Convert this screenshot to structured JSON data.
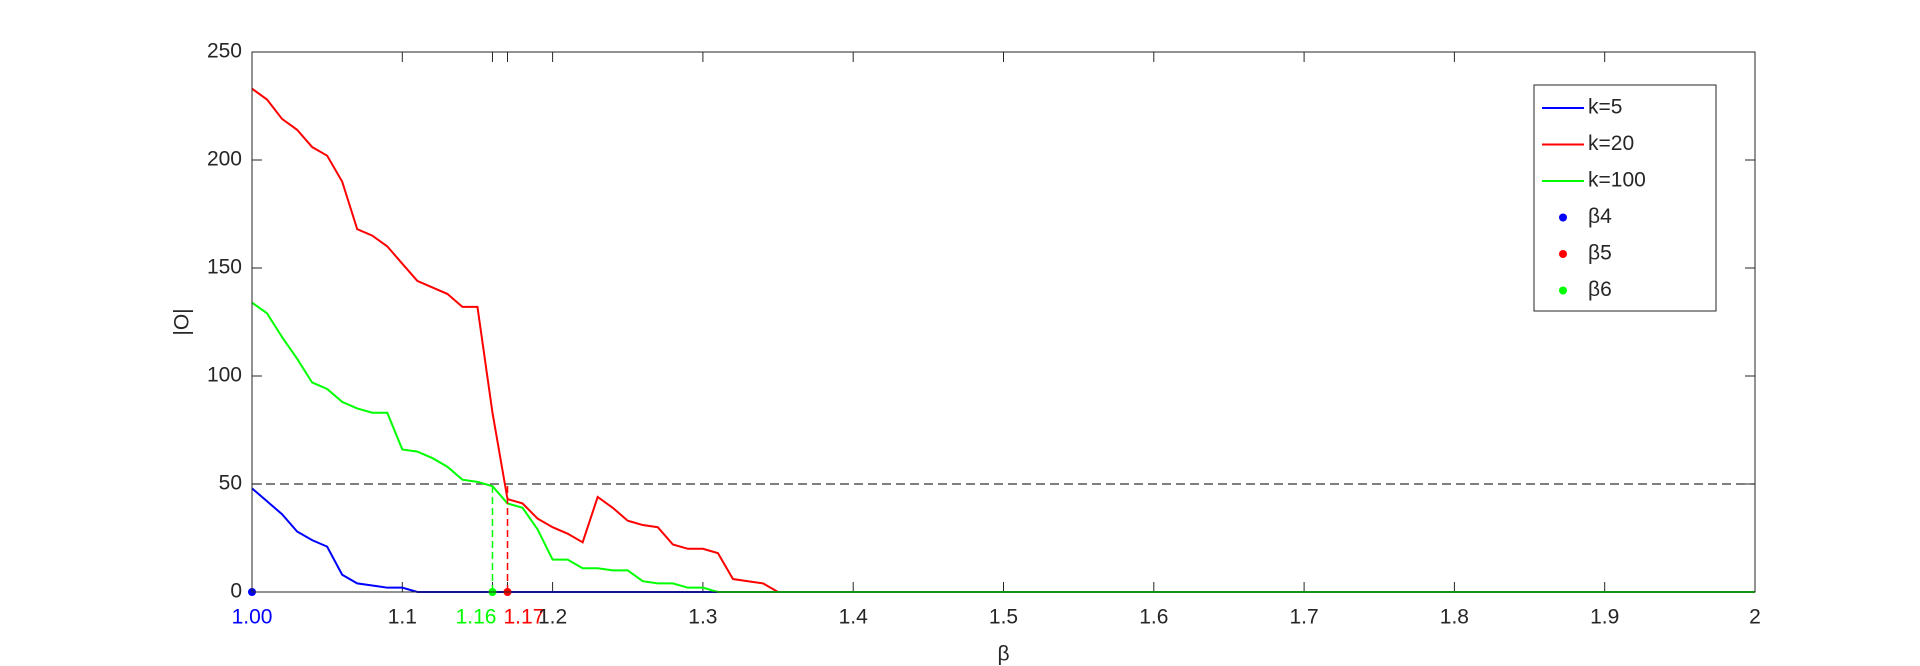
{
  "chart_data": {
    "type": "line",
    "xlabel": "β",
    "ylabel": "|O|",
    "x": [
      1,
      1.01,
      1.02,
      1.03,
      1.04,
      1.05,
      1.06,
      1.07,
      1.08,
      1.09,
      1.1,
      1.11,
      1.12,
      1.13,
      1.14,
      1.15,
      1.16,
      1.17,
      1.18,
      1.19,
      1.2,
      1.21,
      1.22,
      1.23,
      1.24,
      1.25,
      1.26,
      1.27,
      1.28,
      1.29,
      1.3,
      1.31,
      1.32,
      1.33,
      1.34,
      1.35,
      2
    ],
    "series": [
      {
        "name": "k=5",
        "color": "#0000ff",
        "values": [
          48,
          42,
          36,
          28,
          24,
          21,
          8,
          4,
          3,
          2,
          2,
          0,
          0,
          0,
          0,
          0,
          0,
          0,
          0,
          0,
          0,
          0,
          0,
          0,
          0,
          0,
          0,
          0,
          0,
          0,
          0,
          0,
          0,
          0,
          0,
          0,
          0
        ]
      },
      {
        "name": "k=20",
        "color": "#ff0000",
        "values": [
          233,
          228,
          219,
          214,
          206,
          202,
          190,
          168,
          165,
          160,
          152,
          144,
          141,
          138,
          132,
          132,
          83,
          43,
          41,
          34,
          30,
          27,
          23,
          44,
          39,
          33,
          31,
          30,
          22,
          20,
          20,
          18,
          6,
          5,
          4,
          0,
          0
        ]
      },
      {
        "name": "k=100",
        "color": "#00ff00",
        "values": [
          134,
          129,
          118,
          108,
          97,
          94,
          88,
          85,
          83,
          83,
          66,
          65,
          62,
          58,
          52,
          51,
          49,
          41,
          39,
          29,
          15,
          15,
          11,
          11,
          10,
          10,
          5,
          4,
          4,
          2,
          2,
          0,
          0,
          0,
          0,
          0,
          0
        ]
      },
      {
        "name": "β4",
        "type": "scatter",
        "color": "#0000ff",
        "x": [
          1
        ],
        "values": [
          0
        ]
      },
      {
        "name": "β5",
        "type": "scatter",
        "color": "#ff0000",
        "x": [
          1.17
        ],
        "values": [
          0
        ],
        "dropline": true
      },
      {
        "name": "β6",
        "type": "scatter",
        "color": "#00ff00",
        "x": [
          1.16
        ],
        "values": [
          0
        ],
        "dropline": true
      }
    ],
    "hline": 50,
    "xlim": [
      1,
      2
    ],
    "ylim": [
      0,
      250
    ],
    "xticks": [
      {
        "value": 1,
        "label": "1.00"
      },
      1.1,
      1.16,
      1.17,
      1.2,
      1.3,
      1.4,
      1.5,
      1.6,
      1.7,
      1.8,
      1.9,
      2
    ],
    "xtick_colors": [
      "#0000ff",
      null,
      "#00ff00",
      "#ff0000",
      null,
      null,
      null,
      null,
      null,
      null,
      null,
      null,
      null
    ],
    "yticks": [
      0,
      50,
      100,
      150,
      200,
      250
    ],
    "legend": "upper right"
  }
}
